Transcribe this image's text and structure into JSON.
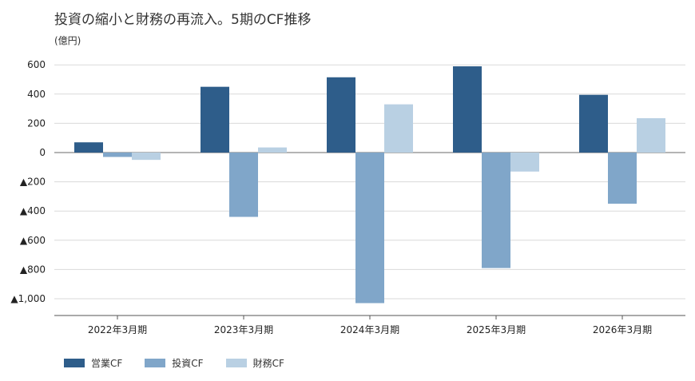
{
  "chart_data": {
    "type": "bar",
    "title": "投資の縮小と財務の再流入。5期のCF推移",
    "unit_label": "(億円)",
    "categories": [
      "2022年3月期",
      "2023年3月期",
      "2024年3月期",
      "2025年3月期",
      "2026年3月期"
    ],
    "series": [
      {
        "name": "営業CF",
        "color": "#2e5d8a",
        "values": [
          70,
          450,
          515,
          590,
          395
        ]
      },
      {
        "name": "投資CF",
        "color": "#80a6c9",
        "values": [
          -30,
          -440,
          -1030,
          -790,
          -350
        ]
      },
      {
        "name": "財務CF",
        "color": "#b9d0e3",
        "values": [
          -50,
          35,
          330,
          -130,
          235
        ]
      }
    ],
    "yticks": [
      600,
      400,
      200,
      0,
      -200,
      -400,
      -600,
      -800,
      -1000
    ],
    "ytick_labels": [
      "600",
      "400",
      "200",
      "0",
      "▲200",
      "▲400",
      "▲600",
      "▲800",
      "▲1,000"
    ],
    "ylim": [
      -1100,
      650
    ],
    "grid": true,
    "legend_position": "bottom-left"
  }
}
